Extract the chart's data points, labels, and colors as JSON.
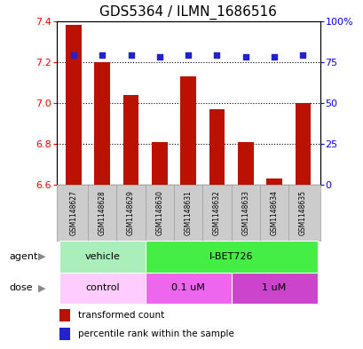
{
  "title": "GDS5364 / ILMN_1686516",
  "samples": [
    "GSM1148627",
    "GSM1148628",
    "GSM1148629",
    "GSM1148630",
    "GSM1148631",
    "GSM1148632",
    "GSM1148633",
    "GSM1148634",
    "GSM1148635"
  ],
  "bar_values": [
    7.38,
    7.2,
    7.04,
    6.81,
    7.13,
    6.97,
    6.81,
    6.63,
    7.0
  ],
  "dot_values": [
    79,
    79,
    79,
    78,
    79,
    79,
    78,
    78,
    79
  ],
  "ylim_left": [
    6.6,
    7.4
  ],
  "ylim_right": [
    0,
    100
  ],
  "yticks_left": [
    6.6,
    6.8,
    7.0,
    7.2,
    7.4
  ],
  "yticks_right": [
    0,
    25,
    50,
    75,
    100
  ],
  "ytick_labels_right": [
    "0",
    "25",
    "50",
    "75",
    "100%"
  ],
  "bar_color": "#bb1100",
  "dot_color": "#2222cc",
  "agent_groups": [
    {
      "label": "vehicle",
      "start": 0,
      "end": 3,
      "color": "#aaeebb"
    },
    {
      "label": "I-BET726",
      "start": 3,
      "end": 9,
      "color": "#44ee44"
    }
  ],
  "dose_groups": [
    {
      "label": "control",
      "start": 0,
      "end": 3,
      "color": "#ffccff"
    },
    {
      "label": "0.1 uM",
      "start": 3,
      "end": 6,
      "color": "#ee66ee"
    },
    {
      "label": "1 uM",
      "start": 6,
      "end": 9,
      "color": "#cc44cc"
    }
  ],
  "bar_base": 6.6,
  "title_fontsize": 11,
  "bar_width": 0.55,
  "grid_yticks": [
    6.8,
    7.0,
    7.2
  ],
  "sample_bg": "#cccccc",
  "sample_border": "#999999"
}
